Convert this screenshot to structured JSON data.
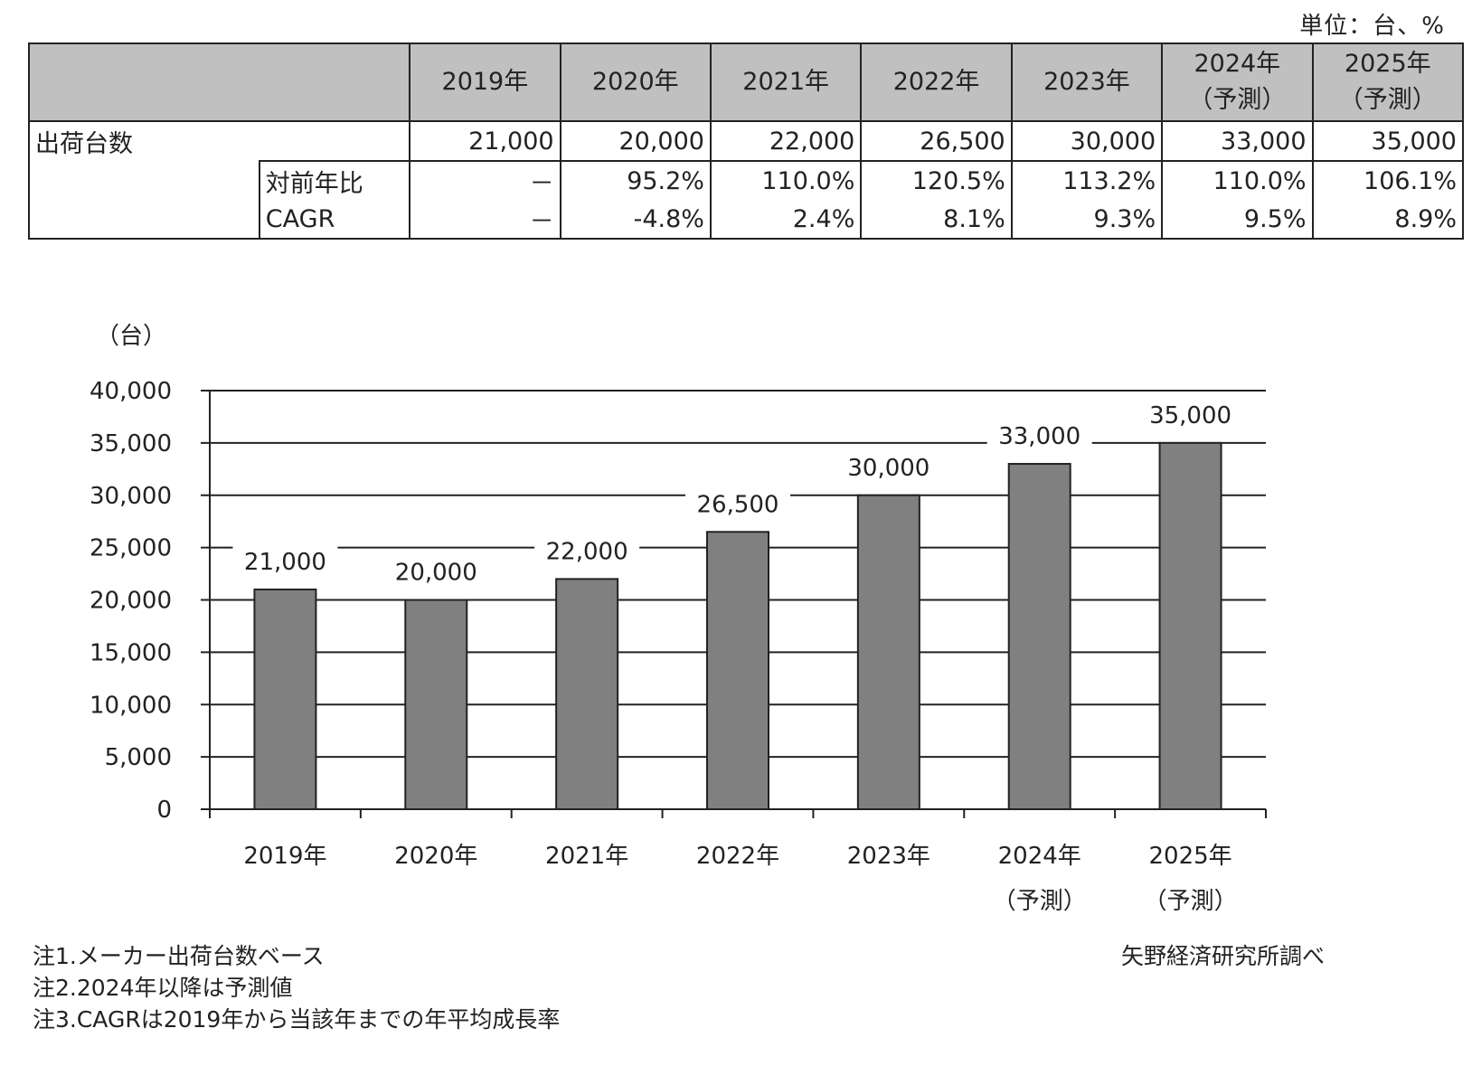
{
  "unit_label": "単位：台、%",
  "table": {
    "headers": [
      "2019年",
      "2020年",
      "2021年",
      "2022年",
      "2023年",
      "2024年\n（予測）",
      "2025年\n（予測）"
    ],
    "rows": [
      {
        "label": "出荷台数",
        "sublabel": "",
        "values": [
          "21,000",
          "20,000",
          "22,000",
          "26,500",
          "30,000",
          "33,000",
          "35,000"
        ]
      },
      {
        "label": "",
        "sublabel": "対前年比",
        "values": [
          "－",
          "95.2%",
          "110.0%",
          "120.5%",
          "113.2%",
          "110.0%",
          "106.1%"
        ]
      },
      {
        "label": "",
        "sublabel": "CAGR",
        "values": [
          "－",
          "-4.8%",
          "2.4%",
          "8.1%",
          "9.3%",
          "9.5%",
          "8.9%"
        ]
      }
    ]
  },
  "chart_data": {
    "type": "bar",
    "title": "",
    "ylabel": "（台）",
    "xlabel": "",
    "categories": [
      "2019年",
      "2020年",
      "2021年",
      "2022年",
      "2023年",
      "2024年\n（予測）",
      "2025年\n（予測）"
    ],
    "values": [
      21000,
      20000,
      22000,
      26500,
      30000,
      33000,
      35000
    ],
    "data_labels": [
      "21,000",
      "20,000",
      "22,000",
      "26,500",
      "30,000",
      "33,000",
      "35,000"
    ],
    "ylim": [
      0,
      40000
    ],
    "yticks": [
      0,
      5000,
      10000,
      15000,
      20000,
      25000,
      30000,
      35000,
      40000
    ],
    "ytick_labels": [
      "0",
      "5,000",
      "10,000",
      "15,000",
      "20,000",
      "25,000",
      "30,000",
      "35,000",
      "40,000"
    ],
    "grid": true,
    "bar_color": "#808080"
  },
  "notes": [
    "注1.メーカー出荷台数ベース",
    "注2.2024年以降は予測値",
    "注3.CAGRは2019年から当該年までの年平均成長率"
  ],
  "source": "矢野経済研究所調べ"
}
